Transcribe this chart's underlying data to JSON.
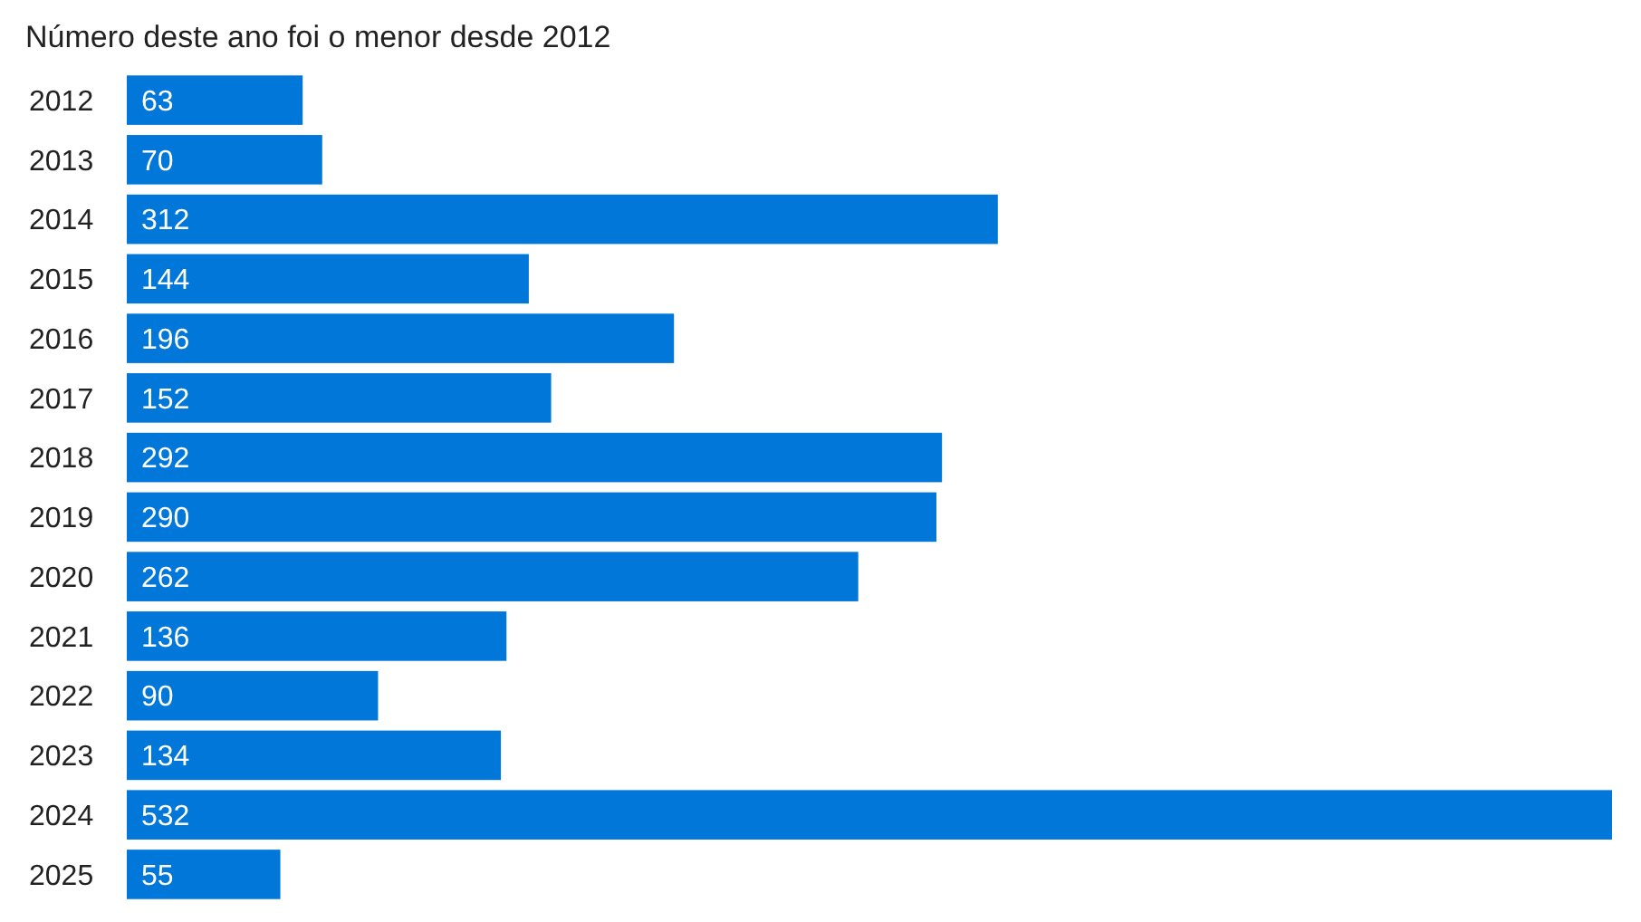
{
  "chart_data": {
    "type": "bar",
    "orientation": "horizontal",
    "subtitle": "Número deste ano foi o menor desde 2012",
    "categories": [
      "2012",
      "2013",
      "2014",
      "2015",
      "2016",
      "2017",
      "2018",
      "2019",
      "2020",
      "2021",
      "2022",
      "2023",
      "2024",
      "2025"
    ],
    "values": [
      63,
      70,
      312,
      144,
      196,
      152,
      292,
      290,
      262,
      136,
      90,
      134,
      532,
      55
    ],
    "color": "#0077d9",
    "data_labels": true
  }
}
